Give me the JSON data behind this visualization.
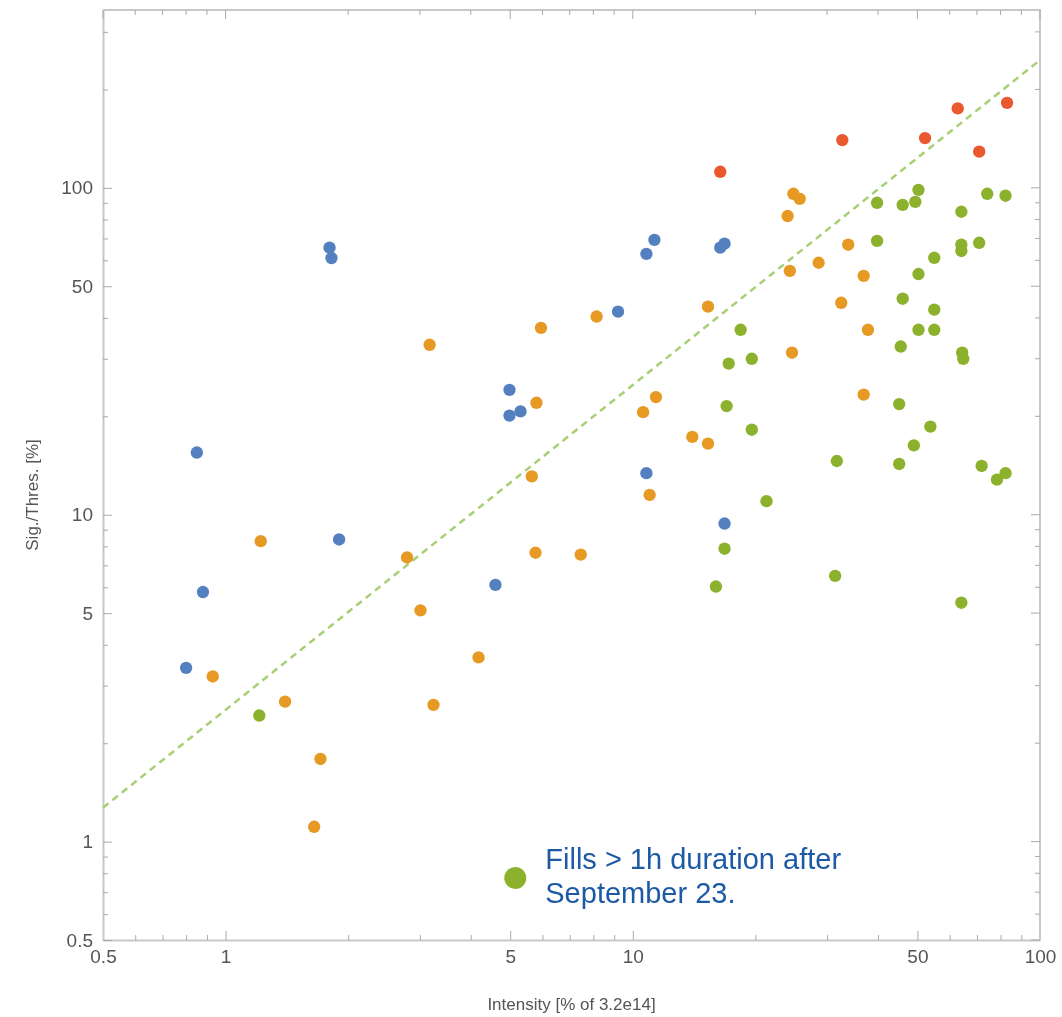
{
  "chart_data": {
    "type": "scatter",
    "xlabel": "Intensity [% of 3.2e14]",
    "ylabel": "Sig./Thres. [%]",
    "log": "xy",
    "grid": false,
    "marker": "circle",
    "legend": "bottom",
    "xlim": [
      0.5,
      100
    ],
    "ylim": [
      0.5,
      350
    ],
    "xticks": [
      0.5,
      {
        "value": 0.6,
        "label": null
      },
      {
        "value": 0.7,
        "label": null
      },
      {
        "value": 0.8,
        "label": null
      },
      {
        "value": 0.9,
        "label": null
      },
      1,
      {
        "value": 2,
        "label": null
      },
      {
        "value": 3,
        "label": null
      },
      {
        "value": 4,
        "label": null
      },
      5,
      {
        "value": 6,
        "label": null
      },
      {
        "value": 7,
        "label": null
      },
      {
        "value": 8,
        "label": null
      },
      {
        "value": 9,
        "label": null
      },
      10,
      {
        "value": 20,
        "label": null
      },
      {
        "value": 30,
        "label": null
      },
      {
        "value": 40,
        "label": null
      },
      50,
      {
        "value": 60,
        "label": null
      },
      {
        "value": 70,
        "label": null
      },
      {
        "value": 80,
        "label": null
      },
      {
        "value": 90,
        "label": null
      },
      100
    ],
    "yticks": [
      0.5,
      {
        "value": 0.6,
        "label": null
      },
      {
        "value": 0.7,
        "label": null
      },
      {
        "value": 0.8,
        "label": null
      },
      {
        "value": 0.9,
        "label": null
      },
      1,
      {
        "value": 2,
        "label": null
      },
      {
        "value": 3,
        "label": null
      },
      {
        "value": 4,
        "label": null
      },
      5,
      {
        "value": 6,
        "label": null
      },
      {
        "value": 7,
        "label": null
      },
      {
        "value": 8,
        "label": null
      },
      {
        "value": 9,
        "label": null
      },
      10,
      {
        "value": 20,
        "label": null
      },
      {
        "value": 30,
        "label": null
      },
      {
        "value": 40,
        "label": null
      },
      50,
      {
        "value": 60,
        "label": null
      },
      {
        "value": 70,
        "label": null
      },
      {
        "value": 80,
        "label": null
      },
      {
        "value": 90,
        "label": null
      },
      100,
      {
        "value": 200,
        "label": null
      },
      {
        "value": 300,
        "label": null
      }
    ],
    "series": [
      {
        "type": "line",
        "color": "#a9cf74",
        "line_style": "dashed",
        "marker": "none",
        "x": [
          0.5,
          100
        ],
        "values": [
          1.27,
          246
        ]
      },
      {
        "color": "#5580c0",
        "x": [
          0.85,
          0.88,
          0.8,
          1.8,
          1.82,
          1.9,
          4.98,
          4.98,
          5.3,
          4.6,
          9.2,
          10.8,
          11.3,
          16.4,
          16.8,
          10.8,
          16.8
        ],
        "values": [
          15.5,
          5.8,
          3.4,
          65.6,
          61,
          8.4,
          24.1,
          20.1,
          20.7,
          6.1,
          41.8,
          62.8,
          69.3,
          65.6,
          67.5,
          13.4,
          9.4
        ]
      },
      {
        "color": "#e69a24",
        "x": [
          1.22,
          3.17,
          2.79,
          5.95,
          5.8,
          5.65,
          5.77,
          0.93,
          1.4,
          1.71,
          1.65,
          3.01,
          4.18,
          3.24,
          8.15,
          15.3,
          24.8,
          25.7,
          24,
          24.3,
          28.6,
          33.8,
          36.9,
          32.5,
          37.8,
          24.6,
          36.9,
          11.4,
          10.6,
          14,
          15.3,
          11,
          7.45
        ],
        "values": [
          8.3,
          33.1,
          7.4,
          37.3,
          22,
          13.1,
          7.65,
          3.2,
          2.68,
          1.79,
          1.11,
          5.1,
          3.66,
          2.62,
          40.4,
          43.3,
          95.9,
          92.5,
          82,
          55.7,
          59,
          67,
          53.8,
          44.5,
          36.8,
          31.3,
          23.3,
          22.9,
          20.6,
          17.3,
          16.5,
          11.5,
          7.55
        ]
      },
      {
        "color": "#e9582e",
        "x": [
          16.4,
          32.7,
          52.2,
          62.8,
          70.9,
          83
        ],
        "values": [
          112,
          140,
          142,
          175,
          129,
          182
        ]
      },
      {
        "name": "Fills > 1h duration after September 23.",
        "color": "#8cb12c",
        "x": [
          1.21,
          39.8,
          46,
          49.4,
          50.3,
          64.1,
          74.2,
          82.3,
          39.8,
          64.1,
          64.1,
          70.9,
          55,
          50.3,
          46,
          55,
          50.3,
          53.8,
          55,
          45.5,
          64.4,
          64.8,
          18.4,
          17.2,
          19.6,
          17,
          19.6,
          45.1,
          53.8,
          49,
          31.7,
          45.1,
          71.9,
          82.3,
          78.4,
          21.3,
          16.8,
          16,
          31.4,
          64.1
        ],
        "values": [
          2.43,
          90,
          88.7,
          90.6,
          98.6,
          84.5,
          95.9,
          94.6,
          68.8,
          67,
          64.1,
          67.9,
          61.1,
          54.5,
          45.8,
          42.4,
          36.8,
          null,
          36.8,
          32.7,
          31.3,
          30,
          36.8,
          29,
          30,
          21.5,
          18.2,
          21.8,
          18.6,
          16.3,
          14.6,
          14.3,
          14.1,
          13.4,
          12.8,
          11,
          7.87,
          6.03,
          6.5,
          5.38
        ]
      }
    ]
  }
}
